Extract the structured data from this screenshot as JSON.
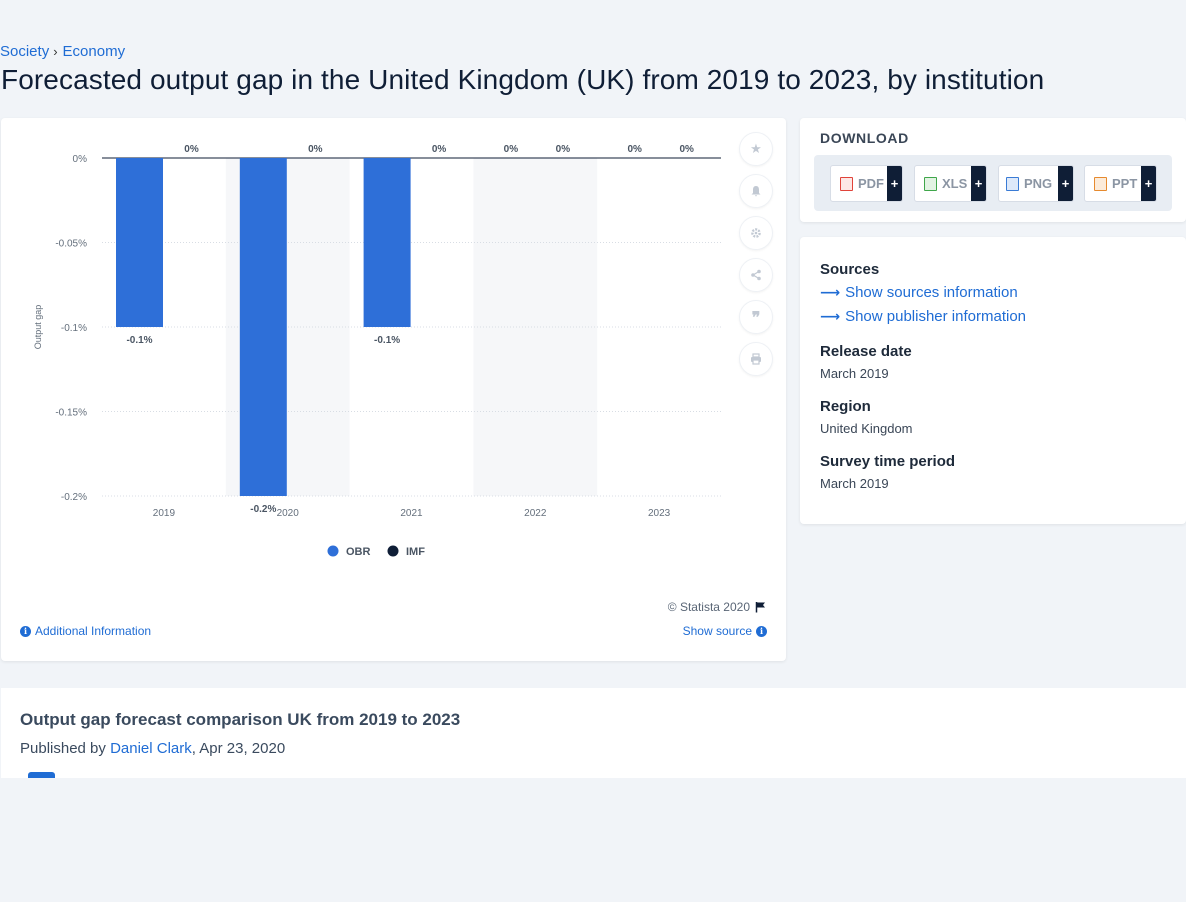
{
  "breadcrumb": {
    "items": [
      "Society",
      "Economy"
    ]
  },
  "page_title": "Forecasted output gap in the United Kingdom (UK) from 2019 to 2023, by institution",
  "chart_data": {
    "type": "bar",
    "title": "",
    "ylabel": "Output gap",
    "xlabel": "",
    "categories": [
      "2019",
      "2020",
      "2021",
      "2022",
      "2023"
    ],
    "series": [
      {
        "name": "OBR",
        "color": "#2e6fd8",
        "values": [
          -0.1,
          -0.2,
          -0.1,
          0,
          0
        ],
        "labels": [
          "-0.1%",
          "-0.2%",
          "-0.1%",
          "0%",
          "0%"
        ]
      },
      {
        "name": "IMF",
        "color": "#0f1e36",
        "values": [
          0,
          0,
          0,
          0,
          0
        ],
        "labels": [
          "0%",
          "0%",
          "0%",
          "0%",
          "0%"
        ]
      }
    ],
    "ylim": [
      -0.2,
      0
    ],
    "yticks": [
      0,
      -0.05,
      -0.1,
      -0.15,
      -0.2
    ],
    "ytick_labels": [
      "0%",
      "-0.05%",
      "-0.1%",
      "-0.15%",
      "-0.2%"
    ],
    "grid": true,
    "legend": "bottom-center"
  },
  "chart_footer": {
    "credit": "© Statista 2020",
    "additional_info": "Additional Information",
    "show_source": "Show source"
  },
  "toolbar_icons": [
    "star-icon",
    "bell-icon",
    "gear-icon",
    "share-icon",
    "quote-icon",
    "print-icon"
  ],
  "download": {
    "title": "DOWNLOAD",
    "buttons": [
      {
        "label": "PDF",
        "icon": "pdf-file-icon",
        "color": "#e0433a"
      },
      {
        "label": "XLS",
        "icon": "xls-file-icon",
        "color": "#3fa64a"
      },
      {
        "label": "PNG",
        "icon": "png-file-icon",
        "color": "#3a7bd5"
      },
      {
        "label": "PPT",
        "icon": "ppt-file-icon",
        "color": "#e68a2e"
      }
    ],
    "plus": "+"
  },
  "meta": {
    "sources_heading": "Sources",
    "show_sources": "Show sources information",
    "show_publisher": "Show publisher information",
    "release_heading": "Release date",
    "release_value": "March 2019",
    "region_heading": "Region",
    "region_value": "United Kingdom",
    "survey_heading": "Survey time period",
    "survey_value": "March 2019"
  },
  "bottom": {
    "title": "Output gap forecast comparison UK from 2019 to 2023",
    "published_prefix": "Published by ",
    "author": "Daniel Clark",
    "date": ", Apr 23, 2020"
  }
}
